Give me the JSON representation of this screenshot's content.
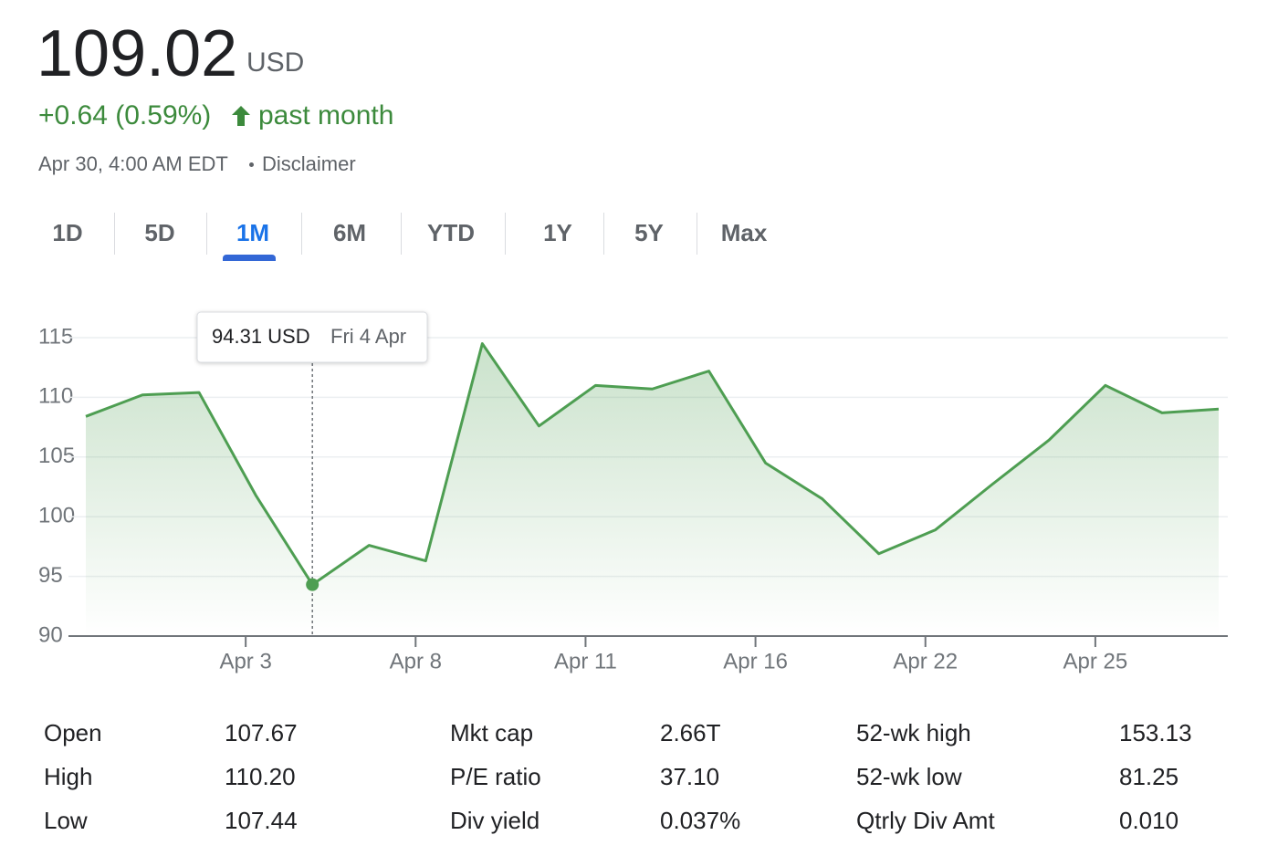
{
  "header": {
    "price": "109.02",
    "currency": "USD",
    "change": "+0.64 (0.59%)",
    "period": "past month",
    "timestamp": "Apr 30, 4:00 AM EDT",
    "disclaimer": "Disclaimer"
  },
  "tabs": {
    "items": [
      "1D",
      "5D",
      "1M",
      "6M",
      "YTD",
      "1Y",
      "5Y",
      "Max"
    ],
    "active": "1M"
  },
  "chart_data": {
    "type": "line",
    "categories": [
      null,
      null,
      null,
      "Apr 3",
      null,
      null,
      "Apr 8",
      null,
      null,
      "Apr 11",
      null,
      null,
      "Apr 16",
      null,
      null,
      "Apr 22",
      null,
      null,
      "Apr 25",
      null,
      null
    ],
    "values": [
      108.4,
      110.2,
      110.4,
      101.8,
      94.31,
      97.6,
      96.3,
      114.5,
      107.6,
      111.0,
      110.7,
      112.2,
      104.5,
      101.5,
      96.9,
      98.9,
      102.7,
      106.4,
      111.0,
      108.7,
      109.02
    ],
    "color": "#4e9e52",
    "ylim": [
      90,
      115
    ],
    "yticks": [
      90,
      95,
      100,
      105,
      110,
      115
    ],
    "grid": true,
    "tooltip": {
      "price": "94.31 USD",
      "date": "Fri 4 Apr"
    }
  },
  "stats": {
    "rows": [
      [
        "Open",
        "107.67",
        "Mkt cap",
        "2.66T",
        "52-wk high",
        "153.13"
      ],
      [
        "High",
        "110.20",
        "P/E ratio",
        "37.10",
        "52-wk low",
        "81.25"
      ],
      [
        "Low",
        "107.44",
        "Div yield",
        "0.037%",
        "Qtrly Div Amt",
        "0.010"
      ]
    ]
  }
}
